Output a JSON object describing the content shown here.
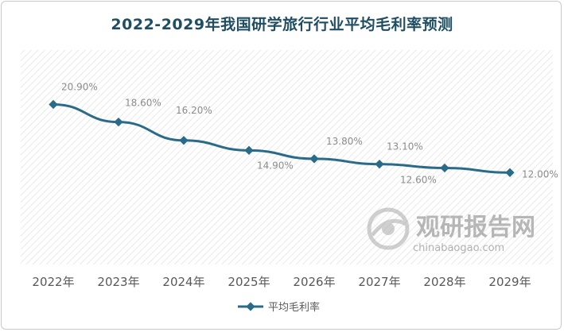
{
  "chart_data": {
    "type": "line",
    "title": "2022-2029年我国研学旅行行业平均毛利率预测",
    "categories": [
      "2022年",
      "2023年",
      "2024年",
      "2025年",
      "2026年",
      "2027年",
      "2028年",
      "2029年"
    ],
    "series": [
      {
        "name": "平均毛利率",
        "values": [
          20.9,
          18.6,
          16.2,
          14.9,
          13.8,
          13.1,
          12.6,
          12.0
        ],
        "labels": [
          "20.90%",
          "18.60%",
          "16.20%",
          "14.90%",
          "13.80%",
          "13.10%",
          "12.60%",
          "12.00%"
        ],
        "color": "#2a6b8a"
      }
    ],
    "ylim": [
      0,
      28
    ],
    "grid": false,
    "legend": "bottom",
    "plot_background": "diagonal-hatch"
  },
  "watermark": {
    "brand": "观研报告网",
    "url": "chinabaogao.com"
  }
}
